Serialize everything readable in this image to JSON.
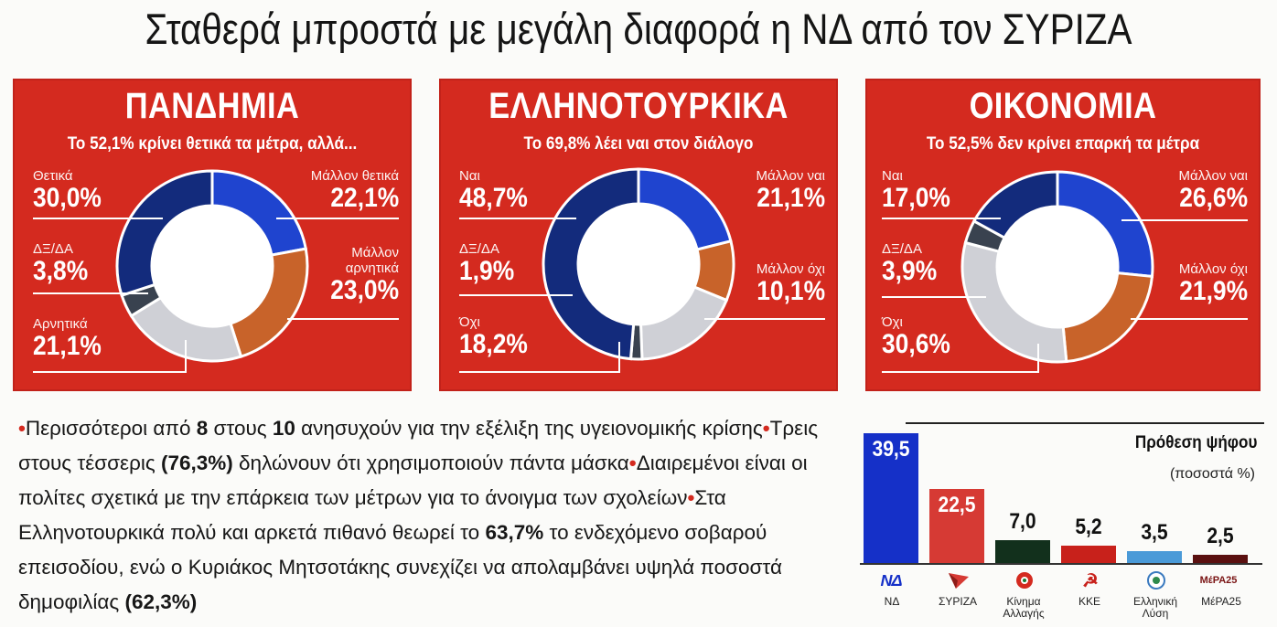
{
  "headline": "Σταθερά μπροστά με μεγάλη διαφορά η ΝΔ από τον ΣΥΡΙΖΑ",
  "colors": {
    "panel_red": "#d42a1f",
    "dark_blue": "#132b7c",
    "bright_blue": "#1f44cf",
    "orange": "#c8632a",
    "light_gray": "#cfd0d6",
    "dark_gray": "#39424f",
    "nd_blue": "#1530c8",
    "syriza_red": "#d63a34",
    "kinal_green": "#12301c",
    "kke_red": "#c8211b",
    "ellisi_blue": "#4a9ad8",
    "mera_darkred": "#5a1010"
  },
  "chart_data": [
    {
      "type": "pie",
      "title": "ΠΑΝΔΗΜΙΑ",
      "subtitle": "Το 52,1% κρίνει θετικά τα μέτρα, αλλά...",
      "slices": [
        {
          "name": "Μάλλον θετικά",
          "value": 22.1,
          "display": "22,1%",
          "color": "#1f44cf"
        },
        {
          "name": "Μάλλον αρνητικά",
          "value": 23.0,
          "display": "23,0%",
          "color": "#c8632a"
        },
        {
          "name": "Αρνητικά",
          "value": 21.1,
          "display": "21,1%",
          "color": "#cfd0d6"
        },
        {
          "name": "ΔΞ/ΔΑ",
          "value": 3.8,
          "display": "3,8%",
          "color": "#39424f"
        },
        {
          "name": "Θετικά",
          "value": 30.0,
          "display": "30,0%",
          "color": "#132b7c"
        }
      ]
    },
    {
      "type": "pie",
      "title": "ΕΛΛΗΝΟΤΟΥΡΚΙΚΑ",
      "subtitle": "Το 69,8% λέει ναι στον διάλογο",
      "slices": [
        {
          "name": "Μάλλον ναι",
          "value": 21.1,
          "display": "21,1%",
          "color": "#1f44cf"
        },
        {
          "name": "Μάλλον όχι",
          "value": 10.1,
          "display": "10,1%",
          "color": "#c8632a"
        },
        {
          "name": "Όχι",
          "value": 18.2,
          "display": "18,2%",
          "color": "#cfd0d6"
        },
        {
          "name": "ΔΞ/ΔΑ",
          "value": 1.9,
          "display": "1,9%",
          "color": "#39424f"
        },
        {
          "name": "Ναι",
          "value": 48.7,
          "display": "48,7%",
          "color": "#132b7c"
        }
      ]
    },
    {
      "type": "pie",
      "title": "ΟΙΚΟΝΟΜΙΑ",
      "subtitle": "Το 52,5% δεν κρίνει επαρκή τα μέτρα",
      "slices": [
        {
          "name": "Μάλλον ναι",
          "value": 26.6,
          "display": "26,6%",
          "color": "#1f44cf"
        },
        {
          "name": "Μάλλον όχι",
          "value": 21.9,
          "display": "21,9%",
          "color": "#c8632a"
        },
        {
          "name": "Όχι",
          "value": 30.6,
          "display": "30,6%",
          "color": "#cfd0d6"
        },
        {
          "name": "ΔΞ/ΔΑ",
          "value": 3.9,
          "display": "3,9%",
          "color": "#39424f"
        },
        {
          "name": "Ναι",
          "value": 17.0,
          "display": "17,0%",
          "color": "#132b7c"
        }
      ]
    },
    {
      "type": "bar",
      "title": "Πρόθεση ψήφου",
      "subtitle": "(ποσοστά %)",
      "categories": [
        "ΝΔ",
        "ΣΥΡΙΖΑ",
        "Κίνημα Αλλαγής",
        "ΚΚΕ",
        "Ελληνική Λύση",
        "ΜέΡΑ25"
      ],
      "values": [
        39.5,
        22.5,
        7.0,
        5.2,
        3.5,
        2.5
      ],
      "display": [
        "39,5",
        "22,5",
        "7,0",
        "5,2",
        "3,5",
        "2,5"
      ],
      "colors": [
        "#1530c8",
        "#d63a34",
        "#12301c",
        "#c8211b",
        "#4a9ad8",
        "#5a1010"
      ]
    }
  ],
  "notes": {
    "p1": "Περισσότεροι από ",
    "n8": "8",
    "p2": " στους ",
    "n10": "10",
    "p3": " ανησυχούν για την εξέλιξη της υγειονομικής κρίσης",
    "p4": "Τρεις στους τέσσερις ",
    "pct1": "(76,3%)",
    "p5": " δηλώνουν ότι χρησιμοποιούν πάντα μάσκα",
    "p6": "Διαιρεμένοι είναι οι πολίτες σχετικά με την επάρκεια των μέτρων για το άνοιγμα των σχολείων",
    "p7": "Στα Ελληνοτουρκικά πολύ και αρκετά πιθανό θεωρεί το ",
    "pct2": "63,7%",
    "p8": " το ενδεχόμενο σοβαρού επεισοδίου, ενώ ο Κυριάκος Μητσοτάκης συνεχίζει να απολαμβάνει υψηλά ποσοστά δημοφιλίας ",
    "pct3": "(62,3%)",
    "bullet": "•"
  },
  "party_logos": [
    "ΝΔ",
    "☭",
    "ΜέΡΑ25"
  ]
}
